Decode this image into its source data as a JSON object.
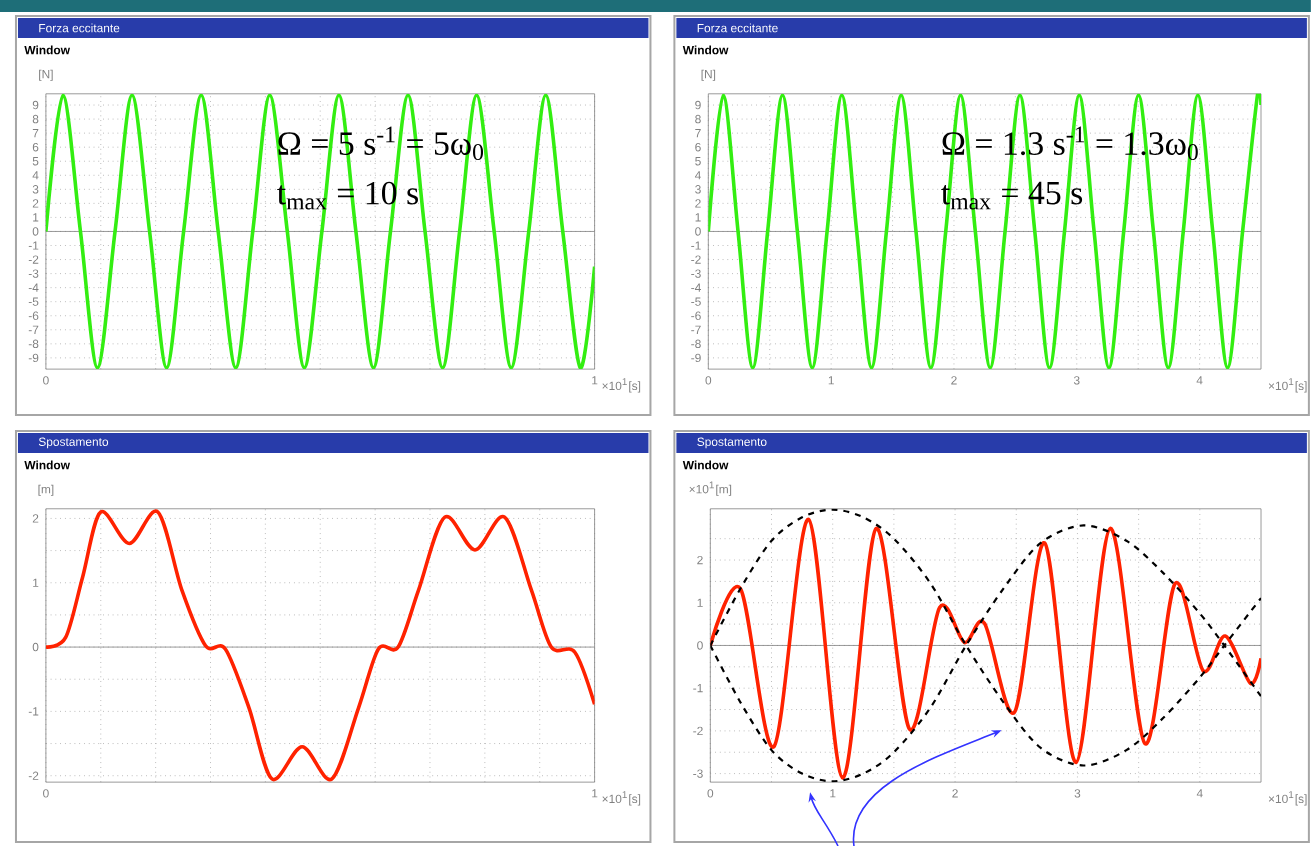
{
  "chart_data": [
    {
      "type": "line",
      "title": "Forza eccitante",
      "subtitle": "Window",
      "ylabel": "[N]",
      "xlabel": "×10$^{1}$[s]",
      "annotations": [
        "Ω = 5 s$^{-1}$ = 5ω$_{0}$",
        "t$_{max}$ = 10 s"
      ],
      "x": [
        0,
        0.031,
        0.063,
        0.094,
        0.126,
        0.157,
        0.189,
        0.22,
        0.251,
        0.283,
        0.314,
        0.346,
        0.377,
        0.408,
        0.44,
        0.471,
        0.503,
        0.534,
        0.565,
        0.597,
        0.628,
        0.66,
        0.691,
        0.723,
        0.754,
        0.785,
        0.817,
        0.848,
        0.88,
        0.911,
        0.942,
        0.974,
        1.0
      ],
      "series": [
        {
          "color": "#33ee11",
          "values": [
            0,
            9.7,
            0,
            -9.7,
            0,
            9.7,
            0,
            -9.7,
            0,
            9.7,
            0,
            -9.7,
            0,
            9.7,
            0,
            -9.7,
            0,
            9.7,
            0,
            -9.7,
            0,
            9.7,
            0,
            -9.7,
            0,
            9.7,
            0,
            -9.7,
            0,
            9.7,
            0,
            -9.7,
            -2.5
          ]
        }
      ],
      "xlim": [
        0,
        1
      ],
      "ylim": [
        -9.8,
        9.8
      ],
      "xticks": [
        0,
        {
          "value": 0.1,
          "label": null
        },
        {
          "value": 0.2,
          "label": null
        },
        {
          "value": 0.3,
          "label": null
        },
        {
          "value": 0.4,
          "label": null
        },
        {
          "value": 0.5,
          "label": null
        },
        {
          "value": 0.6,
          "label": null
        },
        {
          "value": 0.7,
          "label": null
        },
        {
          "value": 0.8,
          "label": null
        },
        {
          "value": 0.9,
          "label": null
        },
        1
      ],
      "yticks": [
        -9,
        -8,
        -7,
        -6,
        -5,
        -4,
        -3,
        -2,
        -1,
        0,
        1,
        2,
        3,
        4,
        5,
        6,
        7,
        8,
        9
      ],
      "grid": true
    },
    {
      "type": "line",
      "title": "Forza eccitante",
      "subtitle": "Window",
      "ylabel": "[N]",
      "xlabel": "×10$^{1}$[s]",
      "annotations": [
        "Ω = 1.3 s$^{-1}$ = 1.3ω$_{0}$",
        "t$_{max}$ = 45 s"
      ],
      "x": [
        0,
        0.121,
        0.242,
        0.362,
        0.483,
        0.604,
        0.725,
        0.846,
        0.967,
        1.087,
        1.208,
        1.329,
        1.45,
        1.57,
        1.691,
        1.812,
        1.933,
        2.054,
        2.174,
        2.295,
        2.416,
        2.537,
        2.658,
        2.778,
        2.9,
        3.02,
        3.141,
        3.262,
        3.382,
        3.503,
        3.624,
        3.745,
        3.867,
        3.986,
        4.107,
        4.228,
        4.35,
        4.471,
        4.5
      ],
      "series": [
        {
          "color": "#33ee11",
          "values": [
            0,
            9.7,
            0,
            -9.7,
            0,
            9.7,
            0,
            -9.7,
            0,
            9.7,
            0,
            -9.7,
            0,
            9.7,
            0,
            -9.7,
            0,
            9.7,
            0,
            -9.7,
            0,
            9.7,
            0,
            -9.7,
            0,
            9.7,
            0,
            -9.7,
            0,
            9.7,
            0,
            -9.7,
            0,
            9.7,
            0,
            -9.7,
            0,
            9.7,
            9.0
          ]
        }
      ],
      "xlim": [
        0,
        4.5
      ],
      "ylim": [
        -9.8,
        9.8
      ],
      "xticks": [
        0,
        {
          "value": 0.5,
          "label": null
        },
        1,
        {
          "value": 1.5,
          "label": null
        },
        2,
        {
          "value": 2.5,
          "label": null
        },
        3,
        {
          "value": 3.5,
          "label": null
        },
        4
      ],
      "yticks": [
        -9,
        -8,
        -7,
        -6,
        -5,
        -4,
        -3,
        -2,
        -1,
        0,
        1,
        2,
        3,
        4,
        5,
        6,
        7,
        8,
        9
      ],
      "grid": true
    },
    {
      "type": "line",
      "title": "Spostamento",
      "subtitle": "Window",
      "ylabel": "[m]",
      "xlabel": "×10$^{1}$[s]",
      "x": [
        0,
        0.036,
        0.067,
        0.1,
        0.152,
        0.204,
        0.248,
        0.291,
        0.327,
        0.37,
        0.412,
        0.467,
        0.521,
        0.57,
        0.606,
        0.642,
        0.679,
        0.727,
        0.782,
        0.836,
        0.885,
        0.921,
        0.964,
        1.0
      ],
      "series": [
        {
          "color": "#ff2200",
          "values": [
            0,
            0.15,
            1.09,
            2.1,
            1.61,
            2.1,
            0.88,
            0.02,
            -0.03,
            -0.94,
            -2.05,
            -1.55,
            -2.05,
            -0.94,
            -0.03,
            0,
            0.88,
            2.02,
            1.51,
            2.02,
            0.88,
            0,
            -0.08,
            -0.89
          ]
        }
      ],
      "xlim": [
        0,
        1
      ],
      "ylim": [
        -2.1,
        2.15
      ],
      "xticks": [
        0,
        {
          "value": 0.1,
          "label": null
        },
        {
          "value": 0.2,
          "label": null
        },
        {
          "value": 0.3,
          "label": null
        },
        {
          "value": 0.4,
          "label": null
        },
        {
          "value": 0.5,
          "label": null
        },
        {
          "value": 0.6,
          "label": null
        },
        {
          "value": 0.7,
          "label": null
        },
        {
          "value": 0.8,
          "label": null
        },
        {
          "value": 0.9,
          "label": null
        },
        1
      ],
      "yticks": [
        -2,
        {
          "value": -1.5,
          "label": null
        },
        -1,
        {
          "value": -0.5,
          "label": null
        },
        0,
        {
          "value": 0.5,
          "label": null
        },
        1,
        {
          "value": 1.5,
          "label": null
        },
        2
      ],
      "grid": true
    },
    {
      "type": "line",
      "title": "Spostamento",
      "subtitle": "Window",
      "ylabel": "×10$^{1}$[m]",
      "xlabel": "×10$^{1}$[s]",
      "series": [
        {
          "color": "#ff2200",
          "x": [
            0,
            0.246,
            0.519,
            0.803,
            1.082,
            1.355,
            1.628,
            1.874,
            2.077,
            2.24,
            2.486,
            2.732,
            2.989,
            3.268,
            3.552,
            3.798,
            4.027,
            4.208,
            4.415,
            4.5
          ],
          "values": [
            0,
            1.33,
            -2.37,
            2.95,
            -3.1,
            2.74,
            -1.96,
            0.89,
            0.07,
            0.52,
            -1.56,
            2.4,
            -2.74,
            2.74,
            -2.3,
            1.45,
            -0.59,
            0.22,
            -0.89,
            -0.3
          ]
        },
        {
          "color": "#000000",
          "line_style": "dashed",
          "x": [
            0,
            0.25,
            0.5,
            0.75,
            1.0,
            1.25,
            1.5,
            1.8,
            2.09,
            2.4,
            2.7,
            3.05,
            3.4,
            3.7,
            4.0,
            4.2,
            4.5
          ],
          "values": [
            0,
            1.35,
            2.45,
            3.0,
            3.18,
            3.0,
            2.5,
            1.45,
            0,
            -1.35,
            -2.4,
            -2.81,
            -2.45,
            -1.7,
            -0.75,
            0,
            1.11
          ]
        },
        {
          "color": "#000000",
          "line_style": "dashed",
          "x": [
            0,
            0.25,
            0.5,
            0.75,
            1.0,
            1.25,
            1.5,
            1.8,
            2.09,
            2.4,
            2.7,
            3.05,
            3.4,
            3.7,
            4.0,
            4.2,
            4.5
          ],
          "values": [
            0,
            -1.35,
            -2.45,
            -3.0,
            -3.18,
            -3.0,
            -2.5,
            -1.45,
            0,
            1.35,
            2.4,
            2.81,
            2.45,
            1.7,
            0.75,
            0,
            -1.19
          ]
        }
      ],
      "xlim": [
        0,
        4.5
      ],
      "ylim": [
        -3.2,
        3.2
      ],
      "xticks": [
        0,
        {
          "value": 0.5,
          "label": null
        },
        1,
        {
          "value": 1.5,
          "label": null
        },
        2,
        {
          "value": 2.5,
          "label": null
        },
        3,
        {
          "value": 3.5,
          "label": null
        },
        4
      ],
      "yticks": [
        -3,
        {
          "value": -2.5,
          "label": null
        },
        -2,
        {
          "value": -1.5,
          "label": null
        },
        -1,
        {
          "value": -0.5,
          "label": null
        },
        0,
        {
          "value": 0.5,
          "label": null
        },
        1,
        {
          "value": 1.5,
          "label": null
        },
        2,
        {
          "value": 2.5,
          "label": null
        }
      ],
      "grid": true
    }
  ]
}
